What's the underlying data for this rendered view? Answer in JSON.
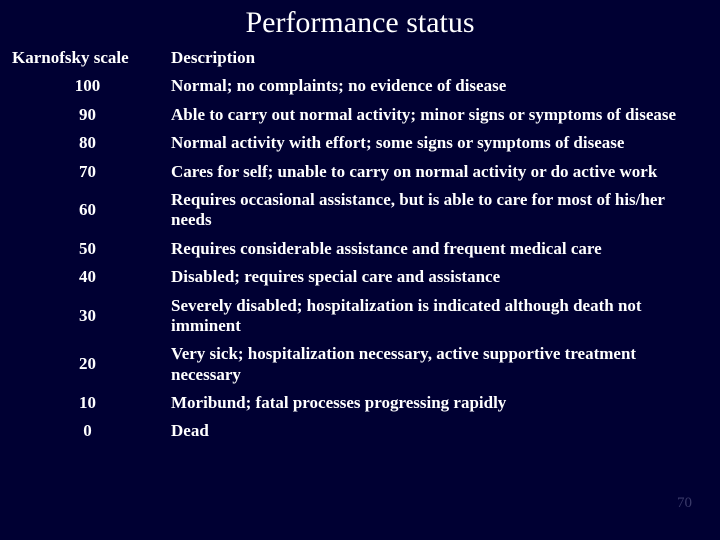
{
  "title": "Performance status",
  "background_color": "#000033",
  "text_color": "#ffffff",
  "font_family": "Times New Roman",
  "page_number": "70",
  "columns": {
    "scale": "Karnofsky scale",
    "description": "Description"
  },
  "rows": [
    {
      "scale": "100",
      "description": "Normal; no complaints; no evidence of disease"
    },
    {
      "scale": "90",
      "description": "Able to carry out normal activity; minor signs or symptoms of disease"
    },
    {
      "scale": "80",
      "description": "Normal activity with effort; some signs or symptoms of disease"
    },
    {
      "scale": "70",
      "description": "Cares for self; unable to carry on normal activity or do active work"
    },
    {
      "scale": "60",
      "description": "Requires occasional assistance, but is able to care for most of his/her needs"
    },
    {
      "scale": "50",
      "description": "Requires considerable assistance and frequent medical care"
    },
    {
      "scale": "40",
      "description": "Disabled; requires special care and assistance"
    },
    {
      "scale": "30",
      "description": "Severely disabled; hospitalization is indicated although death not imminent"
    },
    {
      "scale": "20",
      "description": "Very sick; hospitalization necessary, active supportive treatment necessary"
    },
    {
      "scale": "10",
      "description": "Moribund; fatal processes progressing rapidly"
    },
    {
      "scale": "0",
      "description": "Dead"
    }
  ]
}
